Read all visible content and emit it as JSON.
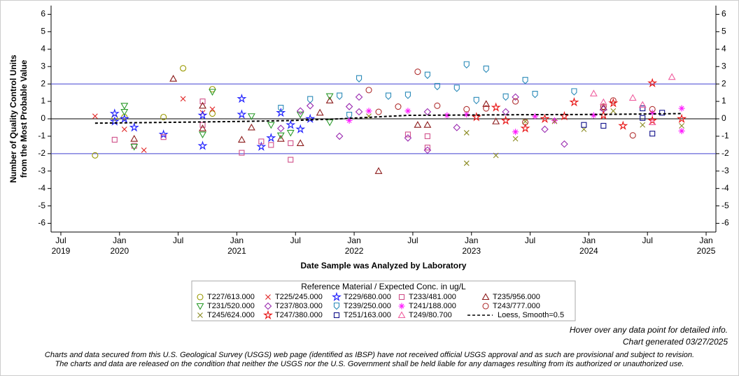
{
  "chart_data": {
    "type": "scatter",
    "x_label": "Date Sample was Analyzed by Laboratory",
    "y_label": [
      "Number of Quality Control Units",
      "from the Most Probable Value"
    ],
    "xlim": [
      "2019-06",
      "2025-02"
    ],
    "xticks": [
      {
        "value": "2019-07",
        "label": "Jul",
        "year": "2019"
      },
      {
        "value": "2020-01",
        "label": "Jan",
        "year": "2020"
      },
      {
        "value": "2020-07",
        "label": "Jul"
      },
      {
        "value": "2021-01",
        "label": "Jan",
        "year": "2021"
      },
      {
        "value": "2021-07",
        "label": "Jul"
      },
      {
        "value": "2022-01",
        "label": "Jan",
        "year": "2022"
      },
      {
        "value": "2022-07",
        "label": "Jul"
      },
      {
        "value": "2023-01",
        "label": "Jan",
        "year": "2023"
      },
      {
        "value": "2023-07",
        "label": "Jul"
      },
      {
        "value": "2024-01",
        "label": "Jan",
        "year": "2024"
      },
      {
        "value": "2024-07",
        "label": "Jul"
      },
      {
        "value": "2025-01",
        "label": "Jan",
        "year": "2025"
      }
    ],
    "ylim": [
      -6.5,
      6.5
    ],
    "yticks": [
      -6,
      -5,
      -4,
      -3,
      -2,
      -1,
      0,
      1,
      2,
      3,
      4,
      5,
      6
    ],
    "y2lim": [
      -6.5,
      6.5
    ],
    "y2ticks": [
      -6,
      -5,
      -4,
      -3,
      -2,
      -1,
      0,
      1,
      2,
      3,
      4,
      5,
      6
    ],
    "reference_lines": [
      {
        "value": 2,
        "color": "#4040d0"
      },
      {
        "value": -2,
        "color": "#4040d0"
      },
      {
        "value": 0,
        "color": "#000000"
      }
    ],
    "legend_title": "Reference Material / Expected Conc. in ug/L",
    "legend_position": "bottom",
    "series": [
      {
        "name": "T227/613.000",
        "marker": "circle",
        "color": "#999900",
        "x": [
          "2019-10",
          "2019-12",
          "2020-01",
          "2020-05",
          "2020-07",
          "2020-10",
          "2020-10"
        ],
        "values": [
          -2.1,
          0.05,
          0.1,
          0.1,
          2.9,
          1.7,
          0.3
        ]
      },
      {
        "name": "T225/245.000",
        "marker": "x",
        "color": "#e02020",
        "x": [
          "2019-10",
          "2020-01",
          "2020-03",
          "2020-07",
          "2020-09",
          "2020-10"
        ],
        "values": [
          0.15,
          -0.6,
          -1.8,
          1.15,
          0.35,
          0.55
        ]
      },
      {
        "name": "T229/680.000",
        "marker": "star",
        "color": "#1a1aff",
        "x": [
          "2019-12",
          "2019-12",
          "2020-01",
          "2020-02",
          "2020-05",
          "2020-09",
          "2020-09",
          "2021-01",
          "2021-01",
          "2021-03",
          "2021-04",
          "2021-05",
          "2021-06",
          "2021-07",
          "2021-08"
        ],
        "values": [
          0.3,
          -0.15,
          0.0,
          -0.5,
          -0.9,
          0.2,
          -1.55,
          0.25,
          1.15,
          -1.6,
          -1.1,
          0.35,
          -0.35,
          -0.6,
          0.0
        ]
      },
      {
        "name": "T233/481.000",
        "marker": "square",
        "color": "#d0508a",
        "x": [
          "2019-12",
          "2020-02",
          "2020-05",
          "2020-09",
          "2020-09",
          "2021-01",
          "2021-03",
          "2021-04",
          "2021-06",
          "2021-06",
          "2022-08",
          "2022-08",
          "2022-06"
        ],
        "values": [
          -1.2,
          -1.55,
          -1.05,
          -0.35,
          1.0,
          -1.95,
          -1.3,
          -1.5,
          -2.35,
          -1.4,
          -1.65,
          -1.0,
          -0.9
        ]
      },
      {
        "name": "T235/956.000",
        "marker": "triangle",
        "color": "#8b1a1a",
        "x": [
          "2020-02",
          "2020-06",
          "2020-09",
          "2020-09",
          "2021-01",
          "2021-02",
          "2021-05",
          "2021-07",
          "2021-09",
          "2021-10",
          "2022-03",
          "2022-07",
          "2022-08",
          "2023-02",
          "2023-03",
          "2024-02"
        ],
        "values": [
          -1.15,
          2.3,
          0.75,
          -0.55,
          -1.2,
          -0.5,
          -1.15,
          -1.4,
          0.35,
          1.05,
          -3.0,
          -0.35,
          -0.35,
          0.85,
          -0.15,
          0.65
        ]
      },
      {
        "name": "T231/520.000",
        "marker": "triangle-down",
        "color": "#2a9a2a",
        "x": [
          "2020-01",
          "2020-01",
          "2020-02",
          "2020-10",
          "2020-09",
          "2021-02",
          "2021-04",
          "2021-05",
          "2021-06",
          "2021-07",
          "2021-10",
          "2021-10"
        ],
        "values": [
          0.75,
          0.4,
          -1.6,
          1.55,
          -0.9,
          0.15,
          -0.35,
          -0.95,
          -0.8,
          0.25,
          1.3,
          -0.2
        ]
      },
      {
        "name": "T237/803.000",
        "marker": "diamond",
        "color": "#9a2ab0",
        "x": [
          "2021-05",
          "2021-07",
          "2021-08",
          "2021-11",
          "2021-12",
          "2022-01",
          "2022-01",
          "2022-06",
          "2022-08",
          "2022-08",
          "2022-11",
          "2023-04",
          "2023-05",
          "2023-08",
          "2023-10",
          "2024-02"
        ],
        "values": [
          -0.55,
          0.45,
          0.75,
          -1.0,
          0.7,
          0.4,
          1.25,
          -1.1,
          -1.8,
          0.4,
          -0.5,
          0.4,
          1.25,
          -0.6,
          -1.45,
          0.55
        ]
      },
      {
        "name": "T239/250.000",
        "marker": "shield",
        "color": "#2a8ab8",
        "x": [
          "2021-05",
          "2021-08",
          "2021-11",
          "2021-12",
          "2022-01",
          "2022-04",
          "2022-06",
          "2022-08",
          "2022-09",
          "2022-11",
          "2022-12",
          "2023-01",
          "2023-02",
          "2023-04",
          "2023-06",
          "2023-07",
          "2023-11"
        ],
        "values": [
          0.6,
          1.1,
          1.3,
          0.2,
          2.3,
          1.3,
          1.35,
          2.5,
          1.85,
          1.75,
          3.1,
          1.05,
          2.85,
          1.25,
          2.2,
          1.4,
          1.55
        ]
      },
      {
        "name": "T241/188.000",
        "marker": "asterisk",
        "color": "#ff1aff",
        "x": [
          "2021-12",
          "2022-02",
          "2022-06",
          "2022-10",
          "2022-12",
          "2023-05",
          "2023-07",
          "2023-09",
          "2024-01",
          "2024-07",
          "2024-10",
          "2024-10"
        ],
        "values": [
          -0.1,
          0.45,
          0.45,
          0.2,
          0.25,
          -0.75,
          0.15,
          -0.1,
          0.2,
          0.35,
          0.6,
          -0.7
        ]
      },
      {
        "name": "T243/777.000",
        "marker": "circle",
        "color": "#b03030",
        "x": [
          "2022-02",
          "2022-03",
          "2022-05",
          "2022-07",
          "2022-09",
          "2022-12",
          "2023-02",
          "2023-05",
          "2023-06",
          "2024-02",
          "2024-03",
          "2024-05",
          "2024-07"
        ],
        "values": [
          1.65,
          0.4,
          0.7,
          2.7,
          0.75,
          0.55,
          0.6,
          1.0,
          -0.2,
          0.7,
          1.05,
          -0.95,
          0.55
        ]
      },
      {
        "name": "T245/624.000",
        "marker": "x",
        "color": "#8a8a20",
        "x": [
          "2022-02",
          "2022-12",
          "2022-12",
          "2023-03",
          "2023-05",
          "2023-06",
          "2023-09",
          "2023-12",
          "2024-03",
          "2024-06",
          "2024-10"
        ],
        "values": [
          0.15,
          -2.55,
          -0.8,
          -2.1,
          -1.15,
          -0.15,
          -0.15,
          -0.6,
          0.45,
          -0.35,
          -0.4
        ]
      },
      {
        "name": "T247/380.000",
        "marker": "star",
        "color": "#e81010",
        "x": [
          "2023-01",
          "2023-03",
          "2023-04",
          "2023-06",
          "2023-08",
          "2023-10",
          "2023-11",
          "2024-02",
          "2024-03",
          "2024-04",
          "2024-07",
          "2024-07",
          "2024-10"
        ],
        "values": [
          0.1,
          0.65,
          -0.1,
          -0.55,
          0.0,
          0.15,
          0.95,
          0.2,
          0.9,
          -0.4,
          2.05,
          -0.1,
          0.0
        ]
      },
      {
        "name": "T251/163.000",
        "marker": "square",
        "color": "#10108a",
        "x": [
          "2023-12",
          "2024-02",
          "2024-06",
          "2024-06",
          "2024-07",
          "2024-08"
        ],
        "values": [
          -0.35,
          -0.4,
          0.6,
          0.05,
          -0.85,
          0.35
        ]
      },
      {
        "name": "T249/80.700",
        "marker": "triangle",
        "color": "#f060a0",
        "x": [
          "2024-01",
          "2024-02",
          "2024-05",
          "2024-06",
          "2024-09",
          "2024-07"
        ],
        "values": [
          1.45,
          0.95,
          1.2,
          0.8,
          2.4,
          -0.2
        ]
      },
      {
        "name": "Loess, Smooth=0.5",
        "marker": "dashed-line",
        "color": "#000000",
        "x": [
          "2019-10",
          "2020-06",
          "2021-01",
          "2021-06",
          "2021-11",
          "2022-06",
          "2023-01",
          "2023-07",
          "2024-01",
          "2024-07",
          "2024-10"
        ],
        "values": [
          -0.25,
          -0.2,
          -0.15,
          -0.1,
          0.0,
          0.2,
          0.22,
          0.24,
          0.25,
          0.28,
          0.3
        ]
      }
    ],
    "notes": [
      "Hover over any data point for detailed info.",
      "Chart generated 03/27/2025"
    ],
    "disclaimer": [
      "Charts and data secured from this U.S. Geological Survey (USGS) web page (identified as IBSP) have not received official USGS approval and as such are provisional and subject to revision.",
      "The charts and data are released on the condition that neither the USGS nor the U.S. Government shall be held liable for any damages resulting from its authorized or unauthorized use."
    ]
  }
}
